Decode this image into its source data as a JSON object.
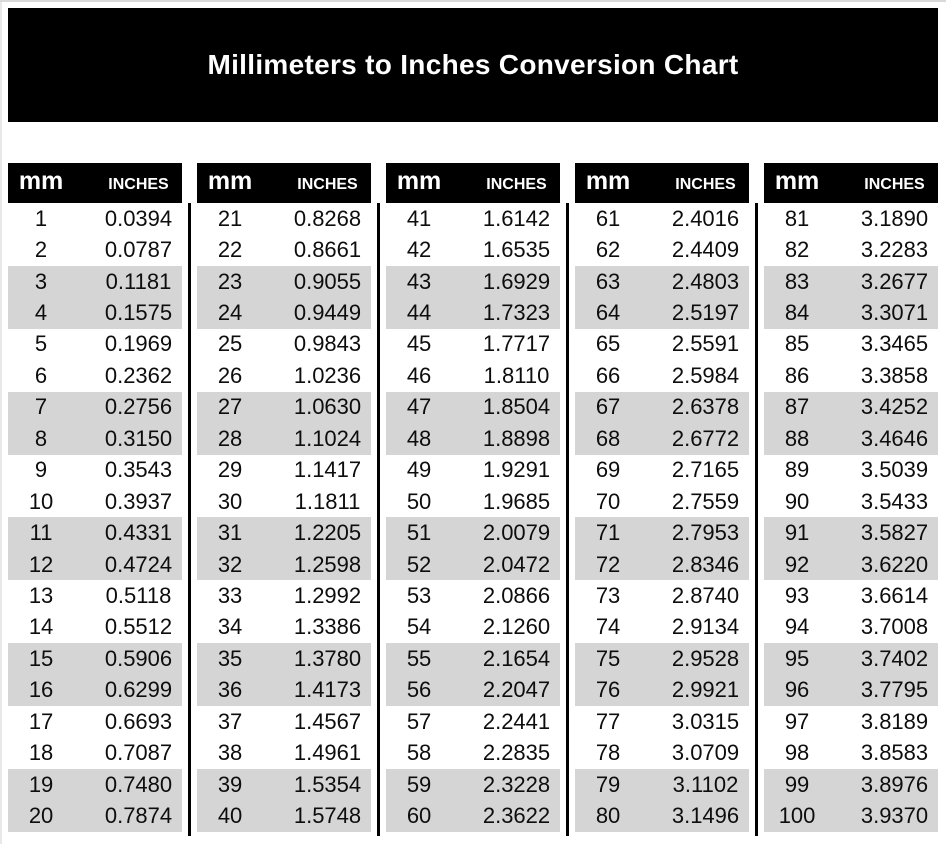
{
  "title": "Millimeters to Inches Conversion Chart",
  "colors": {
    "header_bg": "#000000",
    "header_text": "#ffffff",
    "row_alt": "#d5d5d5",
    "divider": "#000000",
    "text": "#0d0d0d"
  },
  "chart_data": {
    "type": "table",
    "title": "Millimeters to Inches Conversion Chart",
    "columns": [
      "mm",
      "Inches"
    ],
    "layout": "5 side-by-side sub-tables, 20 rows each, rows shaded gray in alternating pairs",
    "tables": [
      {
        "rows": [
          [
            "1",
            "0.0394"
          ],
          [
            "2",
            "0.0787"
          ],
          [
            "3",
            "0.1181"
          ],
          [
            "4",
            "0.1575"
          ],
          [
            "5",
            "0.1969"
          ],
          [
            "6",
            "0.2362"
          ],
          [
            "7",
            "0.2756"
          ],
          [
            "8",
            "0.3150"
          ],
          [
            "9",
            "0.3543"
          ],
          [
            "10",
            "0.3937"
          ],
          [
            "11",
            "0.4331"
          ],
          [
            "12",
            "0.4724"
          ],
          [
            "13",
            "0.5118"
          ],
          [
            "14",
            "0.5512"
          ],
          [
            "15",
            "0.5906"
          ],
          [
            "16",
            "0.6299"
          ],
          [
            "17",
            "0.6693"
          ],
          [
            "18",
            "0.7087"
          ],
          [
            "19",
            "0.7480"
          ],
          [
            "20",
            "0.7874"
          ]
        ]
      },
      {
        "rows": [
          [
            "21",
            "0.8268"
          ],
          [
            "22",
            "0.8661"
          ],
          [
            "23",
            "0.9055"
          ],
          [
            "24",
            "0.9449"
          ],
          [
            "25",
            "0.9843"
          ],
          [
            "26",
            "1.0236"
          ],
          [
            "27",
            "1.0630"
          ],
          [
            "28",
            "1.1024"
          ],
          [
            "29",
            "1.1417"
          ],
          [
            "30",
            "1.1811"
          ],
          [
            "31",
            "1.2205"
          ],
          [
            "32",
            "1.2598"
          ],
          [
            "33",
            "1.2992"
          ],
          [
            "34",
            "1.3386"
          ],
          [
            "35",
            "1.3780"
          ],
          [
            "36",
            "1.4173"
          ],
          [
            "37",
            "1.4567"
          ],
          [
            "38",
            "1.4961"
          ],
          [
            "39",
            "1.5354"
          ],
          [
            "40",
            "1.5748"
          ]
        ]
      },
      {
        "rows": [
          [
            "41",
            "1.6142"
          ],
          [
            "42",
            "1.6535"
          ],
          [
            "43",
            "1.6929"
          ],
          [
            "44",
            "1.7323"
          ],
          [
            "45",
            "1.7717"
          ],
          [
            "46",
            "1.8110"
          ],
          [
            "47",
            "1.8504"
          ],
          [
            "48",
            "1.8898"
          ],
          [
            "49",
            "1.9291"
          ],
          [
            "50",
            "1.9685"
          ],
          [
            "51",
            "2.0079"
          ],
          [
            "52",
            "2.0472"
          ],
          [
            "53",
            "2.0866"
          ],
          [
            "54",
            "2.1260"
          ],
          [
            "55",
            "2.1654"
          ],
          [
            "56",
            "2.2047"
          ],
          [
            "57",
            "2.2441"
          ],
          [
            "58",
            "2.2835"
          ],
          [
            "59",
            "2.3228"
          ],
          [
            "60",
            "2.3622"
          ]
        ]
      },
      {
        "rows": [
          [
            "61",
            "2.4016"
          ],
          [
            "62",
            "2.4409"
          ],
          [
            "63",
            "2.4803"
          ],
          [
            "64",
            "2.5197"
          ],
          [
            "65",
            "2.5591"
          ],
          [
            "66",
            "2.5984"
          ],
          [
            "67",
            "2.6378"
          ],
          [
            "68",
            "2.6772"
          ],
          [
            "69",
            "2.7165"
          ],
          [
            "70",
            "2.7559"
          ],
          [
            "71",
            "2.7953"
          ],
          [
            "72",
            "2.8346"
          ],
          [
            "73",
            "2.8740"
          ],
          [
            "74",
            "2.9134"
          ],
          [
            "75",
            "2.9528"
          ],
          [
            "76",
            "2.9921"
          ],
          [
            "77",
            "3.0315"
          ],
          [
            "78",
            "3.0709"
          ],
          [
            "79",
            "3.1102"
          ],
          [
            "80",
            "3.1496"
          ]
        ]
      },
      {
        "rows": [
          [
            "81",
            "3.1890"
          ],
          [
            "82",
            "3.2283"
          ],
          [
            "83",
            "3.2677"
          ],
          [
            "84",
            "3.3071"
          ],
          [
            "85",
            "3.3465"
          ],
          [
            "86",
            "3.3858"
          ],
          [
            "87",
            "3.4252"
          ],
          [
            "88",
            "3.4646"
          ],
          [
            "89",
            "3.5039"
          ],
          [
            "90",
            "3.5433"
          ],
          [
            "91",
            "3.5827"
          ],
          [
            "92",
            "3.6220"
          ],
          [
            "93",
            "3.6614"
          ],
          [
            "94",
            "3.7008"
          ],
          [
            "95",
            "3.7402"
          ],
          [
            "96",
            "3.7795"
          ],
          [
            "97",
            "3.8189"
          ],
          [
            "98",
            "3.8583"
          ],
          [
            "99",
            "3.8976"
          ],
          [
            "100",
            "3.9370"
          ]
        ]
      }
    ]
  }
}
